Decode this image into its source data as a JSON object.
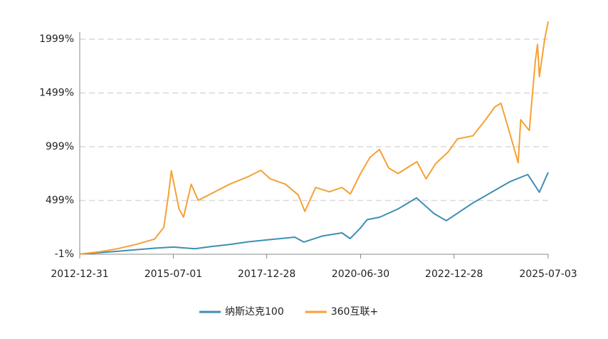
{
  "chart_data": {
    "type": "line",
    "xlim": [
      "2012-12-31",
      "2025-07-03"
    ],
    "xticks": [
      "2012-12-31",
      "2015-07-01",
      "2017-12-28",
      "2020-06-30",
      "2022-12-28",
      "2025-07-03"
    ],
    "ylim": [
      -1,
      1999
    ],
    "yticks": [
      {
        "value": -1,
        "label": "-1%"
      },
      {
        "value": 499,
        "label": "499%"
      },
      {
        "value": 999,
        "label": "999%"
      },
      {
        "value": 1499,
        "label": "1499%"
      },
      {
        "value": 1999,
        "label": "1999%"
      }
    ],
    "grid": true,
    "legend": "bottom",
    "series": [
      {
        "name": "纳斯达克100",
        "color": "#3d8fb3",
        "x": [
          "2012-12-31",
          "2013-12-31",
          "2014-12-31",
          "2015-07-01",
          "2016-01-29",
          "2016-07-01",
          "2017-01-03",
          "2017-07-03",
          "2017-12-28",
          "2018-09-28",
          "2018-12-24",
          "2019-06-28",
          "2019-12-31",
          "2020-03-20",
          "2020-06-30",
          "2020-09-01",
          "2021-01-04",
          "2021-06-30",
          "2021-12-27",
          "2022-06-16",
          "2022-10-13",
          "2023-06-30",
          "2023-12-29",
          "2024-06-28",
          "2024-12-16",
          "2025-04-08",
          "2025-07-03"
        ],
        "values": [
          0,
          26,
          55,
          66,
          50,
          70,
          90,
          115,
          132,
          158,
          112,
          170,
          198,
          145,
          245,
          320,
          344,
          420,
          523,
          377,
          311,
          476,
          576,
          675,
          741,
          576,
          761
        ]
      },
      {
        "name": "360互联+",
        "color": "#f7a035",
        "x": [
          "2012-12-31",
          "2013-06-28",
          "2013-12-31",
          "2014-06-30",
          "2014-12-31",
          "2015-03-31",
          "2015-05-15",
          "2015-06-12",
          "2015-08-26",
          "2015-10-09",
          "2015-12-22",
          "2016-02-29",
          "2016-06-30",
          "2016-12-30",
          "2017-06-30",
          "2017-10-31",
          "2018-01-31",
          "2018-06-29",
          "2018-10-31",
          "2019-01-04",
          "2019-04-19",
          "2019-08-30",
          "2019-12-31",
          "2020-03-23",
          "2020-06-30",
          "2020-09-30",
          "2020-12-31",
          "2021-03-31",
          "2021-06-30",
          "2021-12-31",
          "2022-03-31",
          "2022-06-30",
          "2022-10-31",
          "2023-01-31",
          "2023-06-30",
          "2023-10-31",
          "2024-01-31",
          "2024-03-29",
          "2024-05-31",
          "2024-07-31",
          "2024-09-13",
          "2024-10-08",
          "2024-12-31",
          "2025-01-31",
          "2025-02-28",
          "2025-03-21",
          "2025-04-08",
          "2025-05-30",
          "2025-07-03"
        ],
        "values": [
          0,
          20,
          50,
          90,
          140,
          250,
          550,
          775,
          420,
          344,
          650,
          500,
          560,
          650,
          720,
          780,
          700,
          650,
          550,
          397,
          620,
          580,
          620,
          560,
          750,
          900,
          973,
          800,
          750,
          860,
          700,
          840,
          950,
          1072,
          1100,
          1250,
          1370,
          1403,
          1200,
          1000,
          850,
          1250,
          1150,
          1500,
          1800,
          1950,
          1650,
          2000,
          2164
        ]
      }
    ]
  }
}
